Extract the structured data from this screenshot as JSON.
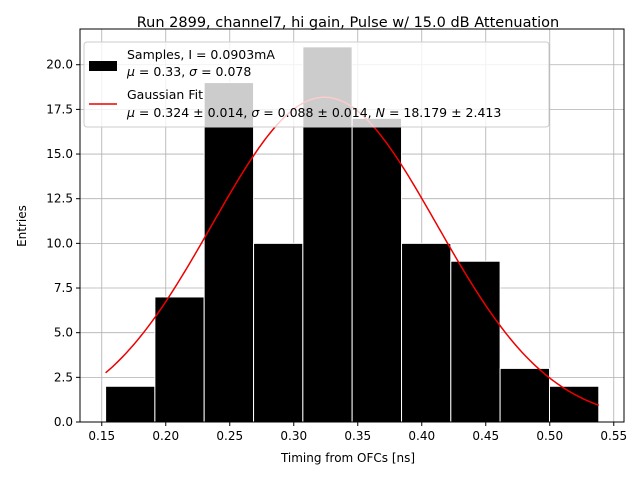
{
  "chart_data": {
    "type": "bar",
    "title": "Run 2899, channel7, hi gain, Pulse w/ 15.0 dB Attenuation",
    "xlabel": "Timing from OFCs [ns]",
    "ylabel": "Entries",
    "xlim": [
      0.133,
      0.558
    ],
    "ylim": [
      0,
      22
    ],
    "grid": true,
    "legend_position": "top-left",
    "xticks": [
      0.15,
      0.2,
      0.25,
      0.3,
      0.35,
      0.4,
      0.45,
      0.5,
      0.55
    ],
    "xtick_labels": [
      "0.15",
      "0.20",
      "0.25",
      "0.30",
      "0.35",
      "0.40",
      "0.45",
      "0.50",
      "0.55"
    ],
    "yticks": [
      0,
      2.5,
      5,
      7.5,
      10,
      12.5,
      15,
      17.5,
      20
    ],
    "ytick_labels": [
      "0.0",
      "2.5",
      "5.0",
      "7.5",
      "10.0",
      "12.5",
      "15.0",
      "17.5",
      "20.0"
    ],
    "histogram": {
      "bin_edges": [
        0.153,
        0.1915,
        0.23,
        0.2686,
        0.3071,
        0.3456,
        0.3842,
        0.4227,
        0.4612,
        0.4998,
        0.5383
      ],
      "counts": [
        2,
        7,
        19,
        10,
        21,
        17,
        10,
        9,
        3,
        2
      ],
      "color": "#000000",
      "edgecolor": "#ffffff"
    },
    "fit": {
      "type": "gaussian",
      "mu": 0.324,
      "sigma": 0.088,
      "N": 18.179,
      "x_range": [
        0.153,
        0.5383
      ],
      "color": "#ee0000"
    },
    "legend": [
      {
        "name": "hist",
        "line1": "Samples, I = 0.0903mA",
        "line2_prefix": "μ",
        "line2_mid": " = 0.33, ",
        "line2_sigma": "σ",
        "line2_suffix": " = 0.078"
      },
      {
        "name": "fit",
        "line1": "Gaussian Fit",
        "l2_mu": "μ",
        "l2_a": " = 0.324 ± 0.014, ",
        "l2_sigma": "σ",
        "l2_b": " = 0.088 ± 0.014, ",
        "l2_n": "N",
        "l2_c": " = 18.179 ± 2.413"
      }
    ]
  }
}
